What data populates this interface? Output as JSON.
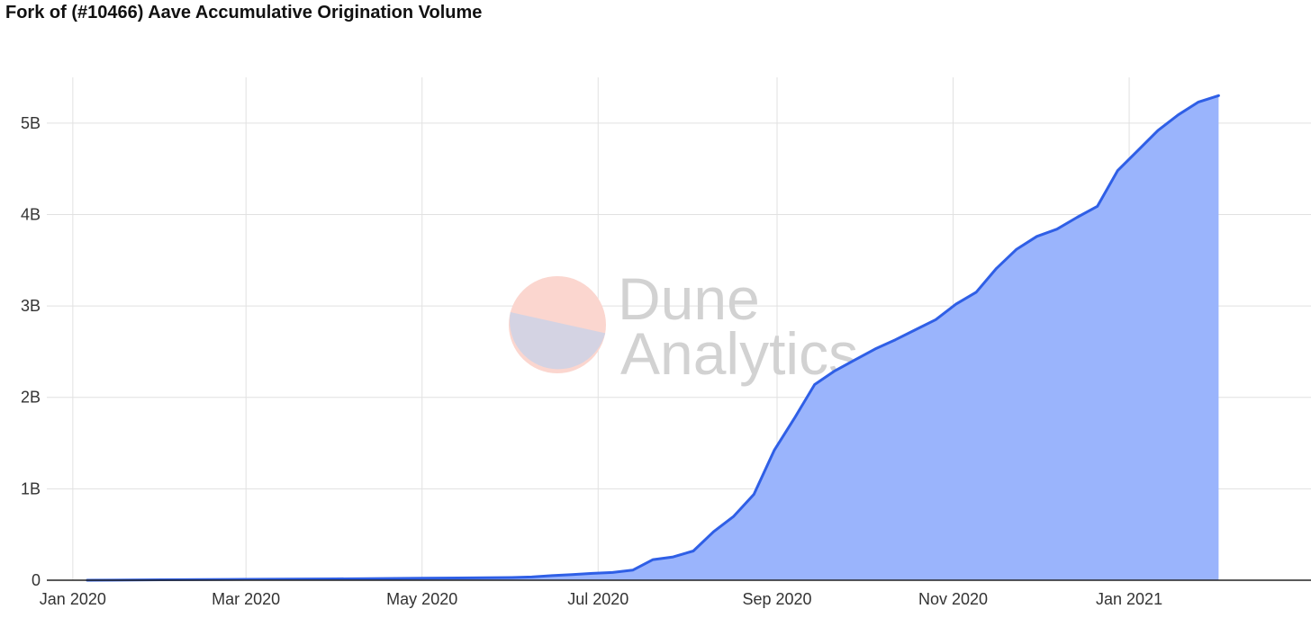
{
  "title": "Fork of (#10466) Aave Accumulative Origination Volume",
  "watermark": {
    "line1": "Dune",
    "line2": "Analytics"
  },
  "colors": {
    "line": "#2f5fe6",
    "fill": "#9ab4fc",
    "grid": "#e1e1e1",
    "axis": "#222222",
    "watermark_top": "#fbd6cf",
    "watermark_bottom": "#d4d3e3"
  },
  "chart_data": {
    "type": "area",
    "title": "Fork of (#10466) Aave Accumulative Origination Volume",
    "xlabel": "",
    "ylabel": "",
    "grid": true,
    "legend": "none",
    "ylim": [
      0,
      5500000000
    ],
    "xlim": [
      "2019-12-23",
      "2021-03-05"
    ],
    "y_ticks": [
      {
        "value": 0,
        "label": "0"
      },
      {
        "value": 1000000000,
        "label": "1B"
      },
      {
        "value": 2000000000,
        "label": "2B"
      },
      {
        "value": 3000000000,
        "label": "3B"
      },
      {
        "value": 4000000000,
        "label": "4B"
      },
      {
        "value": 5000000000,
        "label": "5B"
      }
    ],
    "x_ticks": [
      {
        "date": "2020-01-01",
        "label": "Jan 2020"
      },
      {
        "date": "2020-03-01",
        "label": "Mar 2020"
      },
      {
        "date": "2020-05-01",
        "label": "May 2020"
      },
      {
        "date": "2020-07-01",
        "label": "Jul 2020"
      },
      {
        "date": "2020-09-01",
        "label": "Sep 2020"
      },
      {
        "date": "2020-11-01",
        "label": "Nov 2020"
      },
      {
        "date": "2021-01-01",
        "label": "Jan 2021"
      }
    ],
    "series": [
      {
        "points": [
          [
            "2020-01-06",
            0
          ],
          [
            "2020-02-01",
            5000000
          ],
          [
            "2020-03-01",
            10000000
          ],
          [
            "2020-04-01",
            15000000
          ],
          [
            "2020-05-01",
            22000000
          ],
          [
            "2020-06-01",
            30000000
          ],
          [
            "2020-06-08",
            35000000
          ],
          [
            "2020-06-15",
            50000000
          ],
          [
            "2020-06-22",
            62000000
          ],
          [
            "2020-06-29",
            75000000
          ],
          [
            "2020-07-06",
            85000000
          ],
          [
            "2020-07-13",
            110000000
          ],
          [
            "2020-07-20",
            225000000
          ],
          [
            "2020-07-27",
            255000000
          ],
          [
            "2020-08-03",
            320000000
          ],
          [
            "2020-08-10",
            530000000
          ],
          [
            "2020-08-17",
            700000000
          ],
          [
            "2020-08-24",
            940000000
          ],
          [
            "2020-08-31",
            1420000000
          ],
          [
            "2020-09-07",
            1770000000
          ],
          [
            "2020-09-14",
            2140000000
          ],
          [
            "2020-09-21",
            2290000000
          ],
          [
            "2020-09-28",
            2410000000
          ],
          [
            "2020-10-05",
            2530000000
          ],
          [
            "2020-10-12",
            2630000000
          ],
          [
            "2020-10-19",
            2740000000
          ],
          [
            "2020-10-26",
            2850000000
          ],
          [
            "2020-11-02",
            3020000000
          ],
          [
            "2020-11-09",
            3150000000
          ],
          [
            "2020-11-16",
            3410000000
          ],
          [
            "2020-11-23",
            3620000000
          ],
          [
            "2020-11-30",
            3760000000
          ],
          [
            "2020-12-07",
            3840000000
          ],
          [
            "2020-12-14",
            3970000000
          ],
          [
            "2020-12-21",
            4090000000
          ],
          [
            "2020-12-28",
            4480000000
          ],
          [
            "2021-01-04",
            4700000000
          ],
          [
            "2021-01-11",
            4920000000
          ],
          [
            "2021-01-18",
            5090000000
          ],
          [
            "2021-01-25",
            5230000000
          ],
          [
            "2021-02-01",
            5300000000
          ]
        ]
      }
    ]
  }
}
